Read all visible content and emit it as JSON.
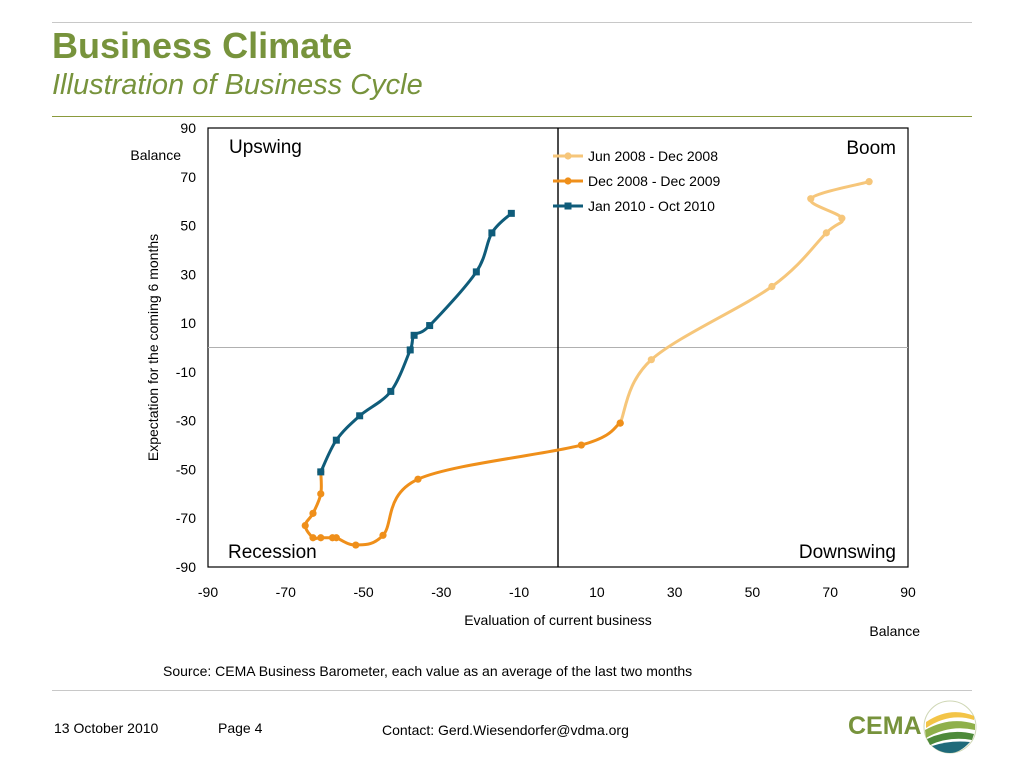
{
  "header": {
    "title": "Business Climate",
    "subtitle": "Illustration of Business Cycle"
  },
  "chart_data": {
    "type": "line",
    "xlabel": "Evaluation of current business",
    "ylabel": "Expectation for the coming 6 months",
    "x_unit": "Balance",
    "y_unit": "Balance",
    "xlim": [
      -90,
      90
    ],
    "ylim": [
      -90,
      90
    ],
    "xticks": [
      -90,
      -70,
      -50,
      -30,
      -10,
      10,
      30,
      50,
      70,
      90
    ],
    "yticks": [
      90,
      70,
      50,
      30,
      10,
      -10,
      -30,
      -50,
      -70,
      -90
    ],
    "quadrants": {
      "top_left": "Upswing",
      "top_right": "Boom",
      "bottom_left": "Recession",
      "bottom_right": "Downswing"
    },
    "legend_position": "top",
    "series": [
      {
        "name": "Jun 2008 - Dec 2008",
        "color": "#f6c67a",
        "marker": "circle",
        "points": [
          [
            80,
            68
          ],
          [
            65,
            61
          ],
          [
            73,
            53
          ],
          [
            69,
            47
          ],
          [
            55,
            25
          ],
          [
            24,
            -5
          ],
          [
            16,
            -31
          ]
        ]
      },
      {
        "name": "Dec 2008 - Dec 2009",
        "color": "#ef8f1a",
        "marker": "circle",
        "points": [
          [
            16,
            -31
          ],
          [
            6,
            -40
          ],
          [
            -36,
            -54
          ],
          [
            -45,
            -77
          ],
          [
            -52,
            -81
          ],
          [
            -57,
            -78
          ],
          [
            -58,
            -78
          ],
          [
            -61,
            -78
          ],
          [
            -63,
            -78
          ],
          [
            -65,
            -73
          ],
          [
            -63,
            -68
          ],
          [
            -61,
            -60
          ],
          [
            -61,
            -51
          ]
        ]
      },
      {
        "name": "Jan 2010 - Oct 2010",
        "color": "#0f5c7a",
        "marker": "square",
        "points": [
          [
            -61,
            -51
          ],
          [
            -57,
            -38
          ],
          [
            -51,
            -28
          ],
          [
            -43,
            -18
          ],
          [
            -38,
            -1
          ],
          [
            -37,
            5
          ],
          [
            -33,
            9
          ],
          [
            -21,
            31
          ],
          [
            -17,
            47
          ],
          [
            -12,
            55
          ]
        ]
      }
    ]
  },
  "source_note": "Source: CEMA Business Barometer, each value as an average of the last two months",
  "footer": {
    "date": "13 October 2010",
    "page": "Page 4",
    "contact": "Contact: Gerd.Wiesendorfer@vdma.org",
    "logo_text": "CEMA"
  },
  "colors": {
    "title": "#77933c",
    "rule": "#8a9a3c"
  }
}
